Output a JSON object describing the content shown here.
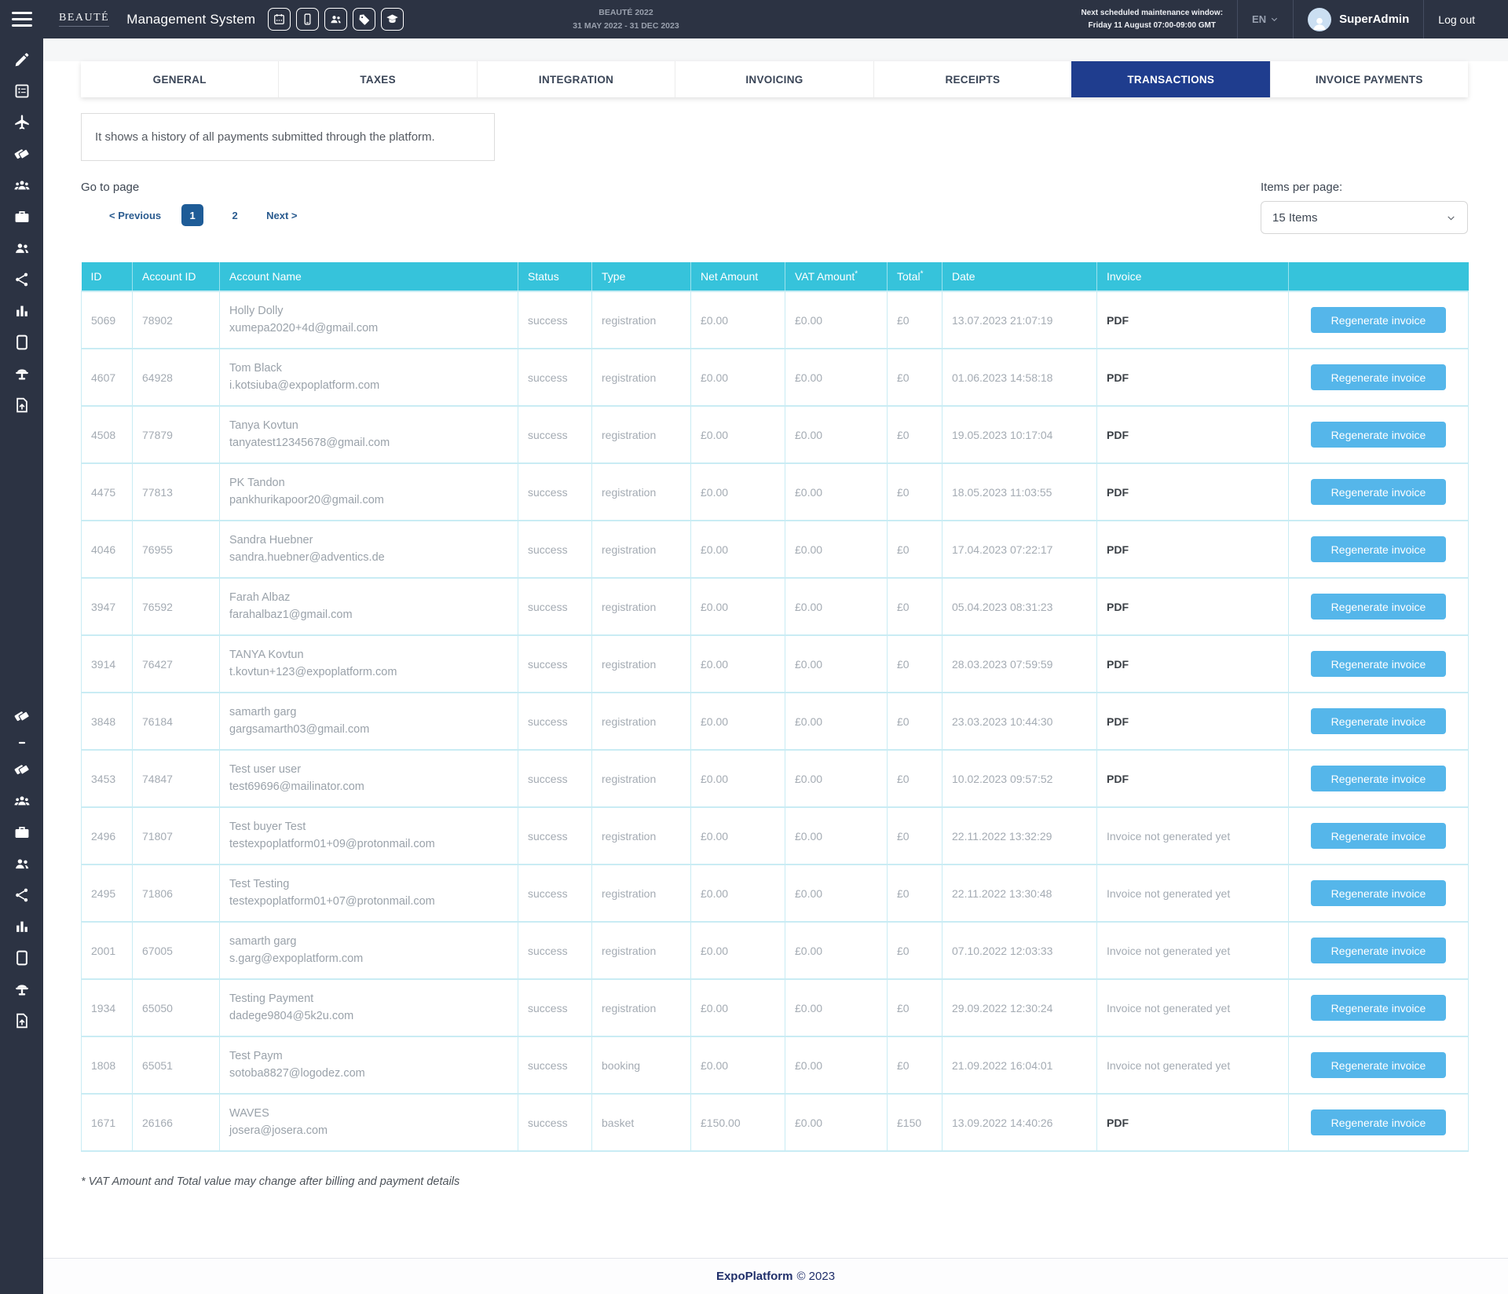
{
  "colors": {
    "dark_chrome": "#2c3343",
    "active_tab_navy": "#1f3d8e",
    "table_header_cyan": "#36c3db",
    "row_border_cyan": "#c9ecf4",
    "button_blue": "#55b6ea",
    "pagination_navy": "#2a5b8f",
    "active_page_blue": "#1e5c97"
  },
  "sidebar": {
    "icons_top": [
      "pencil",
      "form",
      "plane",
      "tags",
      "users-group",
      "briefcase",
      "users",
      "share",
      "bar-chart",
      "tablet",
      "podium",
      "file-export"
    ],
    "icons_bottom": [
      "tags",
      "minus",
      "tags",
      "users-group",
      "briefcase",
      "users",
      "share",
      "bar-chart",
      "tablet",
      "podium",
      "file-export"
    ]
  },
  "header": {
    "logo": "BEAUTÉ",
    "title": "Management System",
    "toolbar_icons": [
      "calendar",
      "mobile",
      "users",
      "tag",
      "education"
    ],
    "event_name": "BEAUTÉ 2022",
    "event_dates": "31 MAY 2022 - 31 DEC 2023",
    "maintenance_line1": "Next scheduled maintenance window:",
    "maintenance_line2": "Friday 11 August 07:00-09:00 GMT",
    "language": "EN",
    "user_name": "SuperAdmin",
    "logout_label": "Log out"
  },
  "tabs": [
    {
      "label": "GENERAL",
      "active": false
    },
    {
      "label": "TAXES",
      "active": false
    },
    {
      "label": "INTEGRATION",
      "active": false
    },
    {
      "label": "INVOICING",
      "active": false
    },
    {
      "label": "RECEIPTS",
      "active": false
    },
    {
      "label": "TRANSACTIONS",
      "active": true
    },
    {
      "label": "INVOICE PAYMENTS",
      "active": false
    }
  ],
  "description": "It shows a history of all payments submitted through the platform.",
  "pagination": {
    "label": "Go to page",
    "previous": "< Previous",
    "pages": [
      "1",
      "2"
    ],
    "active_page": "1",
    "next": "Next >"
  },
  "items_per_page": {
    "label": "Items per page:",
    "selected": "15 Items"
  },
  "table": {
    "columns": [
      {
        "label": "ID"
      },
      {
        "label": "Account ID"
      },
      {
        "label": "Account Name"
      },
      {
        "label": "Status"
      },
      {
        "label": "Type"
      },
      {
        "label": "Net Amount"
      },
      {
        "label": "VAT Amount",
        "sup": "*"
      },
      {
        "label": "Total",
        "sup": "*"
      },
      {
        "label": "Date"
      },
      {
        "label": "Invoice"
      },
      {
        "label": ""
      }
    ],
    "action_label": "Regenerate invoice",
    "invoice_pdf_label": "PDF",
    "invoice_missing_label": "Invoice not generated yet",
    "rows": [
      {
        "id": "5069",
        "account_id": "78902",
        "name": "Holly Dolly",
        "email": "xumepa2020+4d@gmail.com",
        "status": "success",
        "type": "registration",
        "net": "£0.00",
        "vat": "£0.00",
        "total": "£0",
        "date": "13.07.2023 21:07:19",
        "invoice": "PDF"
      },
      {
        "id": "4607",
        "account_id": "64928",
        "name": "Tom Black",
        "email": "i.kotsiuba@expoplatform.com",
        "status": "success",
        "type": "registration",
        "net": "£0.00",
        "vat": "£0.00",
        "total": "£0",
        "date": "01.06.2023 14:58:18",
        "invoice": "PDF"
      },
      {
        "id": "4508",
        "account_id": "77879",
        "name": "Tanya Kovtun",
        "email": "tanyatest12345678@gmail.com",
        "status": "success",
        "type": "registration",
        "net": "£0.00",
        "vat": "£0.00",
        "total": "£0",
        "date": "19.05.2023 10:17:04",
        "invoice": "PDF"
      },
      {
        "id": "4475",
        "account_id": "77813",
        "name": "PK Tandon",
        "email": "pankhurikapoor20@gmail.com",
        "status": "success",
        "type": "registration",
        "net": "£0.00",
        "vat": "£0.00",
        "total": "£0",
        "date": "18.05.2023 11:03:55",
        "invoice": "PDF"
      },
      {
        "id": "4046",
        "account_id": "76955",
        "name": "Sandra Huebner",
        "email": "sandra.huebner@adventics.de",
        "status": "success",
        "type": "registration",
        "net": "£0.00",
        "vat": "£0.00",
        "total": "£0",
        "date": "17.04.2023 07:22:17",
        "invoice": "PDF"
      },
      {
        "id": "3947",
        "account_id": "76592",
        "name": "Farah Albaz",
        "email": "farahalbaz1@gmail.com",
        "status": "success",
        "type": "registration",
        "net": "£0.00",
        "vat": "£0.00",
        "total": "£0",
        "date": "05.04.2023 08:31:23",
        "invoice": "PDF"
      },
      {
        "id": "3914",
        "account_id": "76427",
        "name": "TANYA Kovtun",
        "email": "t.kovtun+123@expoplatform.com",
        "status": "success",
        "type": "registration",
        "net": "£0.00",
        "vat": "£0.00",
        "total": "£0",
        "date": "28.03.2023 07:59:59",
        "invoice": "PDF"
      },
      {
        "id": "3848",
        "account_id": "76184",
        "name": "samarth garg",
        "email": "gargsamarth03@gmail.com",
        "status": "success",
        "type": "registration",
        "net": "£0.00",
        "vat": "£0.00",
        "total": "£0",
        "date": "23.03.2023 10:44:30",
        "invoice": "PDF"
      },
      {
        "id": "3453",
        "account_id": "74847",
        "name": "Test user user",
        "email": "test69696@mailinator.com",
        "status": "success",
        "type": "registration",
        "net": "£0.00",
        "vat": "£0.00",
        "total": "£0",
        "date": "10.02.2023 09:57:52",
        "invoice": "PDF"
      },
      {
        "id": "2496",
        "account_id": "71807",
        "name": "Test buyer Test",
        "email": "testexpoplatform01+09@protonmail.com",
        "status": "success",
        "type": "registration",
        "net": "£0.00",
        "vat": "£0.00",
        "total": "£0",
        "date": "22.11.2022 13:32:29",
        "invoice": "Invoice not generated yet"
      },
      {
        "id": "2495",
        "account_id": "71806",
        "name": "Test Testing",
        "email": "testexpoplatform01+07@protonmail.com",
        "status": "success",
        "type": "registration",
        "net": "£0.00",
        "vat": "£0.00",
        "total": "£0",
        "date": "22.11.2022 13:30:48",
        "invoice": "Invoice not generated yet"
      },
      {
        "id": "2001",
        "account_id": "67005",
        "name": "samarth garg",
        "email": "s.garg@expoplatform.com",
        "status": "success",
        "type": "registration",
        "net": "£0.00",
        "vat": "£0.00",
        "total": "£0",
        "date": "07.10.2022 12:03:33",
        "invoice": "Invoice not generated yet"
      },
      {
        "id": "1934",
        "account_id": "65050",
        "name": "Testing Payment",
        "email": "dadege9804@5k2u.com",
        "status": "success",
        "type": "registration",
        "net": "£0.00",
        "vat": "£0.00",
        "total": "£0",
        "date": "29.09.2022 12:30:24",
        "invoice": "Invoice not generated yet"
      },
      {
        "id": "1808",
        "account_id": "65051",
        "name": "Test Paym",
        "email": "sotoba8827@logodez.com",
        "status": "success",
        "type": "booking",
        "net": "£0.00",
        "vat": "£0.00",
        "total": "£0",
        "date": "21.09.2022 16:04:01",
        "invoice": "Invoice not generated yet"
      },
      {
        "id": "1671",
        "account_id": "26166",
        "name": "WAVES",
        "email": "josera@josera.com",
        "status": "success",
        "type": "basket",
        "net": "£150.00",
        "vat": "£0.00",
        "total": "£150",
        "date": "13.09.2022 14:40:26",
        "invoice": "PDF"
      }
    ]
  },
  "footnote": "* VAT Amount and Total value may change after billing and payment details",
  "footer": {
    "brand": "ExpoPlatform",
    "copyright": "© 2023"
  }
}
